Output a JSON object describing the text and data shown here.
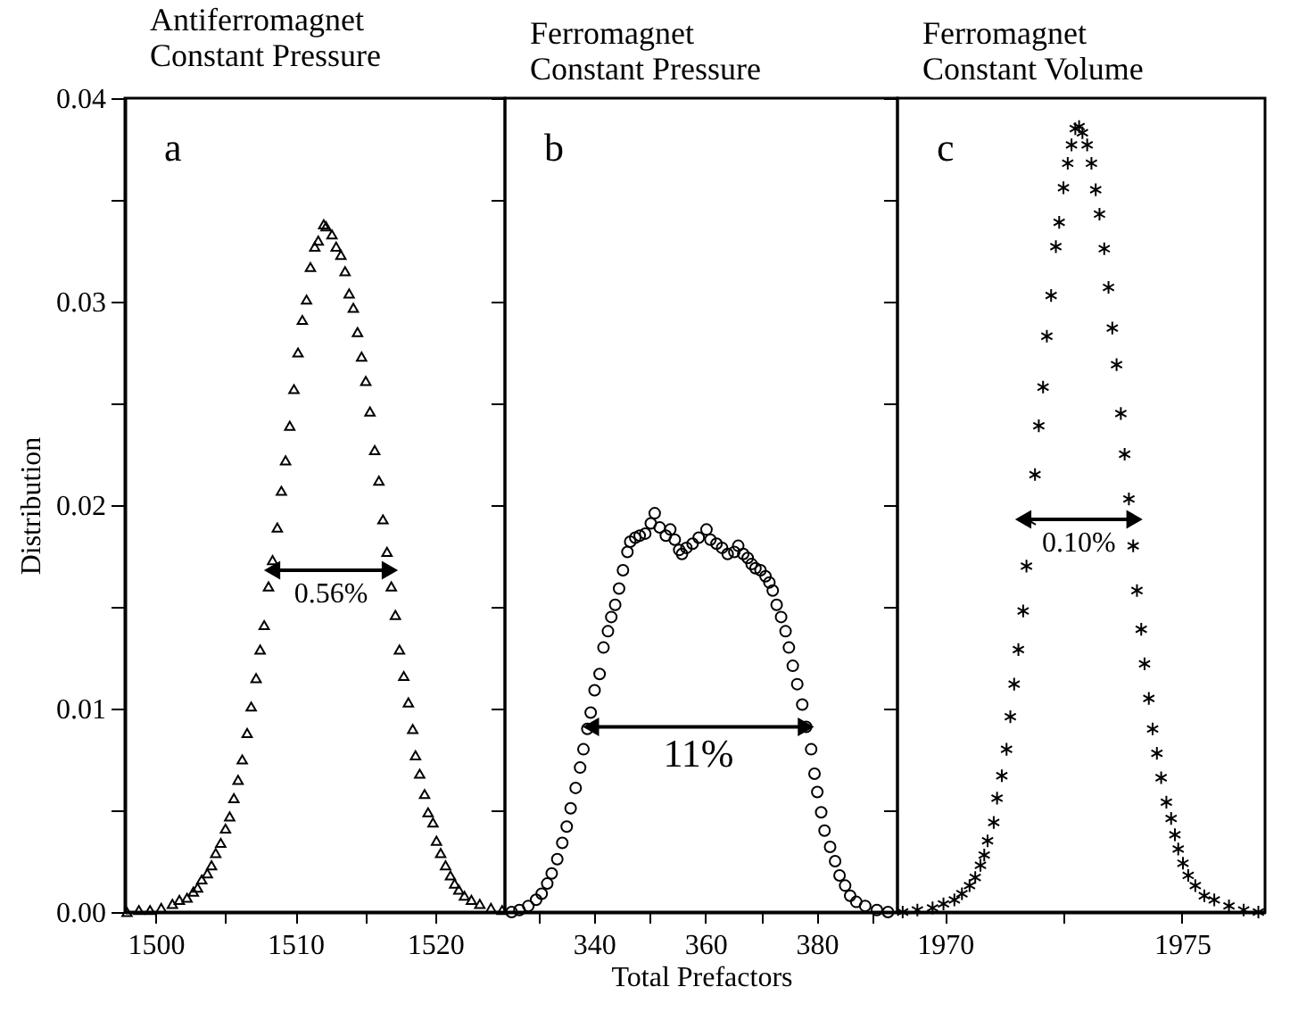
{
  "chart_data": [
    {
      "type": "scatter",
      "title": "Antiferromagnet\nConstant Pressure",
      "ylabel": "Distribution",
      "marker": "triangle",
      "annotations": [
        "a",
        {
          "text": "0.56%",
          "x": 1512.55,
          "y": 0.0168
        }
      ],
      "x": [
        1497.95,
        1498.8,
        1499.6,
        1500.4,
        1501.2,
        1501.7,
        1502.25,
        1502.7,
        1503.0,
        1503.3,
        1503.7,
        1504.0,
        1504.3,
        1504.66,
        1505.0,
        1505.3,
        1505.6,
        1505.9,
        1506.2,
        1506.55,
        1506.84,
        1507.19,
        1507.48,
        1507.77,
        1508.08,
        1508.37,
        1508.71,
        1509.0,
        1509.3,
        1509.6,
        1509.9,
        1510.19,
        1510.5,
        1510.8,
        1511.08,
        1511.39,
        1511.64,
        1512.03,
        1512.2,
        1512.62,
        1512.92,
        1513.26,
        1513.56,
        1513.85,
        1514.15,
        1514.45,
        1514.74,
        1515.04,
        1515.34,
        1515.68,
        1515.98,
        1516.27,
        1516.56,
        1516.87,
        1517.16,
        1517.45,
        1517.76,
        1518.09,
        1518.4,
        1518.6,
        1518.9,
        1519.25,
        1519.5,
        1519.85,
        1520.1,
        1520.4,
        1520.75,
        1521.1,
        1521.4,
        1521.7,
        1522.1,
        1522.6,
        1523.2,
        1524.0,
        1524.8
      ],
      "series": [
        {
          "color": "#000000",
          "values": [
            0.0,
            0.0001,
            0.0001,
            0.0002,
            0.0004,
            0.0006,
            0.0007,
            0.001,
            0.0012,
            0.0016,
            0.0019,
            0.0023,
            0.0029,
            0.0034,
            0.0041,
            0.0047,
            0.0056,
            0.0065,
            0.0075,
            0.0088,
            0.0101,
            0.0115,
            0.0129,
            0.0141,
            0.016,
            0.0173,
            0.0189,
            0.0207,
            0.0222,
            0.0239,
            0.0257,
            0.0275,
            0.0291,
            0.0301,
            0.0317,
            0.0327,
            0.033,
            0.0338,
            0.0337,
            0.0333,
            0.0327,
            0.0323,
            0.0315,
            0.0304,
            0.0297,
            0.0285,
            0.0273,
            0.0261,
            0.0246,
            0.0227,
            0.0212,
            0.0193,
            0.0177,
            0.016,
            0.0146,
            0.0129,
            0.0116,
            0.0103,
            0.009,
            0.0077,
            0.0068,
            0.0058,
            0.0049,
            0.0044,
            0.0035,
            0.0029,
            0.0023,
            0.0018,
            0.0014,
            0.0011,
            0.0008,
            0.0006,
            0.0004,
            0.0002,
            0.0001
          ]
        },
        {
          "type": "line",
          "color": "#000000",
          "marker": "triangle",
          "x": [
            1508.4,
            1516.7
          ],
          "values": [
            0.0168,
            0.0168
          ]
        }
      ],
      "xlim": [
        1497.8,
        1525
      ],
      "xticks": [
        1500,
        {
          "value": 1505,
          "label": null
        },
        1510,
        {
          "value": 1515,
          "label": null
        },
        1520
      ],
      "ylim": [
        0,
        0.04
      ],
      "yticks": [
        {
          "value": 0,
          "label": "0.00"
        },
        {
          "value": 0.005,
          "label": null
        },
        0.01,
        {
          "value": 0.015,
          "label": null
        },
        {
          "value": 0.02,
          "label": "0.02"
        },
        {
          "value": 0.025,
          "label": null
        },
        0.03,
        {
          "value": 0.035,
          "label": null
        },
        0.04
      ],
      "grid": false
    },
    {
      "type": "scatter",
      "title": "Ferromagnet\nConstant Pressure",
      "xlabel": "Total Prefactors",
      "marker": "circle",
      "tick_labels": "x",
      "annotations": [
        "b",
        {
          "text": "11%",
          "x": 358.75,
          "y": 0.0091
        }
      ],
      "x": [
        325.2,
        326.6,
        328.2,
        329.6,
        330.6,
        331.6,
        332.4,
        333.4,
        334.3,
        335.1,
        335.8,
        336.7,
        337.5,
        338.1,
        338.8,
        339.4,
        340.1,
        341.0,
        341.7,
        342.5,
        343.1,
        343.8,
        344.5,
        345.2,
        346.0,
        346.5,
        347.4,
        348.2,
        349.2,
        350.2,
        350.9,
        351.8,
        352.9,
        353.7,
        354.5,
        355.3,
        355.8,
        356.6,
        357.7,
        358.8,
        360.2,
        360.9,
        362.0,
        363.0,
        364.0,
        365.2,
        365.9,
        366.8,
        367.6,
        368.3,
        369.0,
        369.9,
        370.8,
        371.5,
        372.1,
        372.8,
        373.6,
        374.4,
        375.0,
        375.7,
        376.5,
        377.4,
        378.1,
        379.0,
        379.6,
        380.1,
        380.8,
        381.4,
        382.4,
        383.3,
        384.1,
        385.1,
        386.0,
        387.1,
        388.7,
        390.8,
        392.8
      ],
      "series": [
        {
          "color": "#000000",
          "values": [
            0.0,
            0.0001,
            0.0003,
            0.0006,
            0.0009,
            0.0014,
            0.0019,
            0.0026,
            0.0034,
            0.0042,
            0.0051,
            0.0061,
            0.0071,
            0.008,
            0.009,
            0.0098,
            0.0109,
            0.0117,
            0.013,
            0.0138,
            0.0145,
            0.0151,
            0.0159,
            0.0168,
            0.0177,
            0.0182,
            0.0184,
            0.0185,
            0.0186,
            0.0191,
            0.0196,
            0.0189,
            0.0185,
            0.0188,
            0.0183,
            0.0178,
            0.0176,
            0.0179,
            0.0181,
            0.0184,
            0.0188,
            0.0183,
            0.0181,
            0.0179,
            0.0176,
            0.0177,
            0.018,
            0.0176,
            0.0174,
            0.0171,
            0.0169,
            0.0168,
            0.0165,
            0.0162,
            0.0158,
            0.0151,
            0.0145,
            0.0138,
            0.013,
            0.0121,
            0.0112,
            0.0102,
            0.0091,
            0.008,
            0.0068,
            0.0059,
            0.0049,
            0.004,
            0.0032,
            0.0025,
            0.0018,
            0.0013,
            0.0008,
            0.0005,
            0.0003,
            0.0001,
            0.0
          ]
        },
        {
          "type": "line",
          "color": "#000000",
          "marker": "triangle",
          "x": [
            339.6,
            377.9
          ],
          "values": [
            0.0091,
            0.0091
          ]
        }
      ],
      "xlim": [
        324,
        394.5
      ],
      "xticks": [
        {
          "value": 330,
          "label": null
        },
        340,
        {
          "value": 350,
          "label": null
        },
        360,
        {
          "value": 370,
          "label": null
        },
        380,
        {
          "value": 390,
          "label": null
        }
      ],
      "ylim": [
        0,
        0.04
      ],
      "yticks": [
        0,
        0.005,
        0.01,
        0.015,
        0.02,
        0.025,
        0.03,
        0.035,
        0.04
      ],
      "grid": false
    },
    {
      "type": "scatter",
      "title": "Ferromagnet\nConstant Volume",
      "marker": "cross",
      "tick_labels": "x",
      "annotations": [
        "c",
        {
          "text": "0.10%",
          "x": 1972.825,
          "y": 0.0193
        }
      ],
      "x": [
        1969.11,
        1969.42,
        1969.74,
        1969.97,
        1970.2,
        1970.36,
        1970.52,
        1970.64,
        1970.75,
        1970.83,
        1970.9,
        1971.03,
        1971.1,
        1971.2,
        1971.3,
        1971.38,
        1971.46,
        1971.55,
        1971.65,
        1971.72,
        1971.8,
        1971.9,
        1971.98,
        1972.07,
        1972.15,
        1972.24,
        1972.34,
        1972.41,
        1972.5,
        1972.59,
        1972.67,
        1972.75,
        1972.83,
        1972.9,
        1973.0,
        1973.09,
        1973.18,
        1973.26,
        1973.36,
        1973.45,
        1973.53,
        1973.62,
        1973.71,
        1973.79,
        1973.88,
        1973.97,
        1974.05,
        1974.14,
        1974.21,
        1974.3,
        1974.38,
        1974.47,
        1974.56,
        1974.67,
        1974.77,
        1974.85,
        1974.92,
        1975.02,
        1975.13,
        1975.28,
        1975.47,
        1975.68,
        1975.99,
        1976.3,
        1976.61
      ],
      "series": [
        {
          "color": "#000000",
          "values": [
            0.0,
            0.0001,
            0.0002,
            0.0004,
            0.0006,
            0.0009,
            0.0013,
            0.0017,
            0.0023,
            0.0028,
            0.0035,
            0.0044,
            0.0056,
            0.0067,
            0.008,
            0.0096,
            0.0112,
            0.0129,
            0.0148,
            0.017,
            0.0192,
            0.0215,
            0.0239,
            0.0258,
            0.0283,
            0.0303,
            0.0327,
            0.0339,
            0.0356,
            0.0368,
            0.0377,
            0.0385,
            0.0386,
            0.0383,
            0.0377,
            0.0368,
            0.0355,
            0.0343,
            0.0326,
            0.0307,
            0.0287,
            0.0269,
            0.0245,
            0.0225,
            0.0203,
            0.018,
            0.0158,
            0.0139,
            0.0122,
            0.0105,
            0.009,
            0.0078,
            0.0066,
            0.0054,
            0.0046,
            0.0038,
            0.0031,
            0.0024,
            0.0018,
            0.0013,
            0.0008,
            0.0006,
            0.0003,
            0.0001,
            0.0
          ]
        },
        {
          "type": "line",
          "color": "#000000",
          "marker": "triangle",
          "x": [
            1971.67,
            1973.98
          ],
          "values": [
            0.0193,
            0.0193
          ]
        }
      ],
      "xlim": [
        1969,
        1976.75
      ],
      "xticks": [
        1970,
        {
          "value": 1972.5,
          "label": null
        },
        1975
      ],
      "ylim": [
        0,
        0.04
      ],
      "yticks": [
        0,
        0.005,
        0.01,
        0.015,
        0.02,
        0.025,
        0.03,
        0.035,
        0.04
      ],
      "grid": false
    }
  ]
}
